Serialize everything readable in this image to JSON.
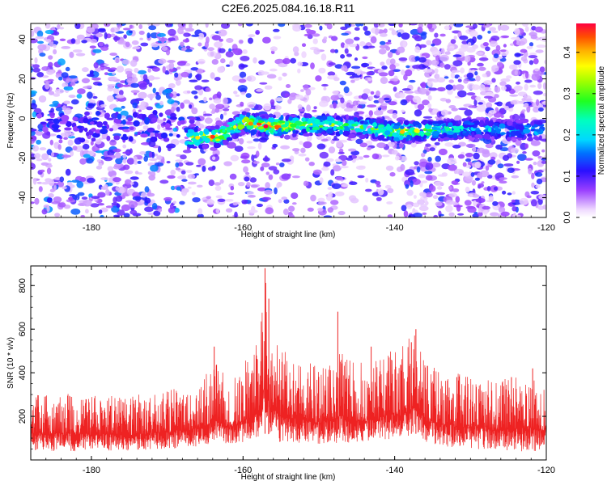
{
  "page_title": "C2E6.2025.084.16.18.R11",
  "chart_data": [
    {
      "type": "heatmap",
      "title": "C2E6.2025.084.16.18.R11",
      "xlabel": "Height of straight line (km)",
      "ylabel": "Frequency (Hz)",
      "xlim": [
        -188,
        -120
      ],
      "ylim": [
        -50,
        48
      ],
      "x_ticks": [
        -180,
        -160,
        -140,
        -120
      ],
      "x_tick_labels": [
        "-180",
        "-160",
        "-140",
        "-120"
      ],
      "y_ticks": [
        40,
        20,
        0,
        -20,
        -40
      ],
      "y_tick_labels": [
        "40",
        "20",
        "0",
        "-20",
        "-40"
      ],
      "colorbar": {
        "label": "Normalized spectral amplitude",
        "range": [
          0.0,
          0.47
        ],
        "ticks": [
          0.0,
          0.1,
          0.2,
          0.3,
          0.4
        ],
        "tick_labels": [
          "0.0",
          "0.1",
          "0.2",
          "0.3",
          "0.4"
        ]
      },
      "ridge": {
        "description_free": true,
        "frequency_center_hz": [
          [
            -167,
            -10
          ],
          [
            -163,
            -9
          ],
          [
            -160,
            -2
          ],
          [
            -157,
            -4
          ],
          [
            -150,
            -3
          ],
          [
            -145,
            -4
          ],
          [
            -140,
            -7
          ],
          [
            -135,
            -6
          ],
          [
            -130,
            -5
          ],
          [
            -125,
            -6
          ],
          [
            -121,
            -6
          ]
        ],
        "peak_amplitudes": [
          [
            -166,
            0.38
          ],
          [
            -164,
            0.45
          ],
          [
            -159,
            0.42
          ],
          [
            -157,
            0.47
          ],
          [
            -148,
            0.3
          ],
          [
            -145,
            0.28
          ],
          [
            -139,
            0.4
          ],
          [
            -137,
            0.36
          ],
          [
            -133,
            0.25
          ],
          [
            -128,
            0.18
          ]
        ]
      }
    },
    {
      "type": "line",
      "xlabel": "Height of straight line (km)",
      "ylabel": "SNR (10 * v/v)",
      "xlim": [
        -188,
        -120
      ],
      "ylim": [
        0,
        890
      ],
      "x_ticks": [
        -180,
        -160,
        -140,
        -120
      ],
      "x_tick_labels": [
        "-180",
        "-160",
        "-140",
        "-120"
      ],
      "y_ticks": [
        200,
        400,
        600,
        800
      ],
      "y_tick_labels": [
        "200",
        "400",
        "600",
        "800"
      ],
      "series": [
        {
          "name": "SNR",
          "color": "#ee2222",
          "envelope_x": [
            -188,
            -180,
            -175,
            -170,
            -167,
            -165,
            -163.5,
            -162,
            -160,
            -158,
            -157,
            -156.5,
            -155,
            -153,
            -150,
            -147,
            -145,
            -143,
            -141,
            -139,
            -137.5,
            -136,
            -133,
            -130,
            -127,
            -124,
            -120
          ],
          "envelope_upper": [
            310,
            300,
            290,
            330,
            340,
            400,
            470,
            360,
            440,
            550,
            890,
            600,
            520,
            470,
            440,
            500,
            450,
            440,
            500,
            520,
            600,
            460,
            400,
            400,
            360,
            390,
            360
          ],
          "envelope_lower": [
            40,
            40,
            40,
            50,
            60,
            60,
            90,
            70,
            80,
            100,
            140,
            90,
            80,
            80,
            70,
            80,
            80,
            90,
            90,
            100,
            120,
            80,
            60,
            50,
            50,
            40,
            40
          ],
          "spikes": [
            [
              -163.8,
              520
            ],
            [
              -157.1,
              880
            ],
            [
              -156.6,
              740
            ],
            [
              -147.5,
              680
            ],
            [
              -143.1,
              520
            ],
            [
              -137.8,
              540
            ],
            [
              -137.2,
              600
            ],
            [
              -131.8,
              380
            ],
            [
              -124.6,
              380
            ],
            [
              -121.8,
              420
            ]
          ]
        }
      ]
    }
  ]
}
